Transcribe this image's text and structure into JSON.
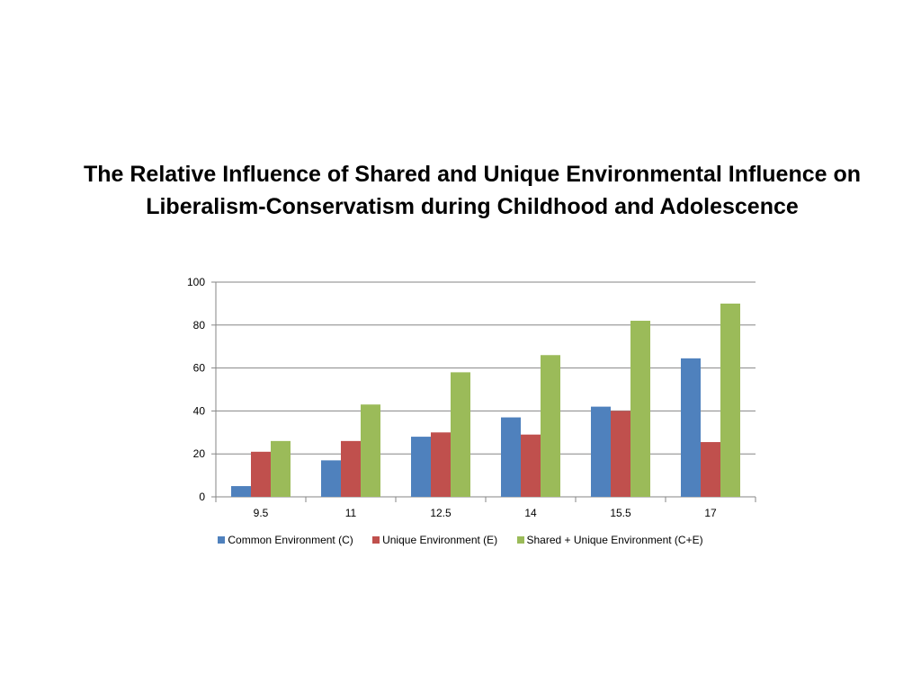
{
  "slide": {
    "title_line1": "The Relative Influence of Shared and Unique Environmental Influence on",
    "title_line2": "Liberalism-Conservatism during Childhood and Adolescence"
  },
  "chart_data": {
    "type": "bar",
    "title": "The Relative Influence of Shared and Unique Environmental Influence on Liberalism-Conservatism during Childhood and Adolescence",
    "xlabel": "",
    "ylabel": "",
    "categories": [
      "9.5",
      "11",
      "12.5",
      "14",
      "15.5",
      "17"
    ],
    "series": [
      {
        "name": "Common Environment (C)",
        "color": "#4F81BD",
        "values": [
          5,
          17,
          28,
          37,
          42,
          64.5
        ]
      },
      {
        "name": "Unique Environment (E)",
        "color": "#C0504D",
        "values": [
          21,
          26,
          30,
          29,
          40,
          25.5
        ]
      },
      {
        "name": "Shared + Unique Environment (C+E)",
        "color": "#9BBB59",
        "values": [
          26,
          43,
          58,
          66,
          82,
          90
        ]
      }
    ],
    "ylim": [
      0,
      100
    ],
    "yticks": [
      0,
      20,
      40,
      60,
      80,
      100
    ],
    "grid": true,
    "legend": "bottom"
  }
}
